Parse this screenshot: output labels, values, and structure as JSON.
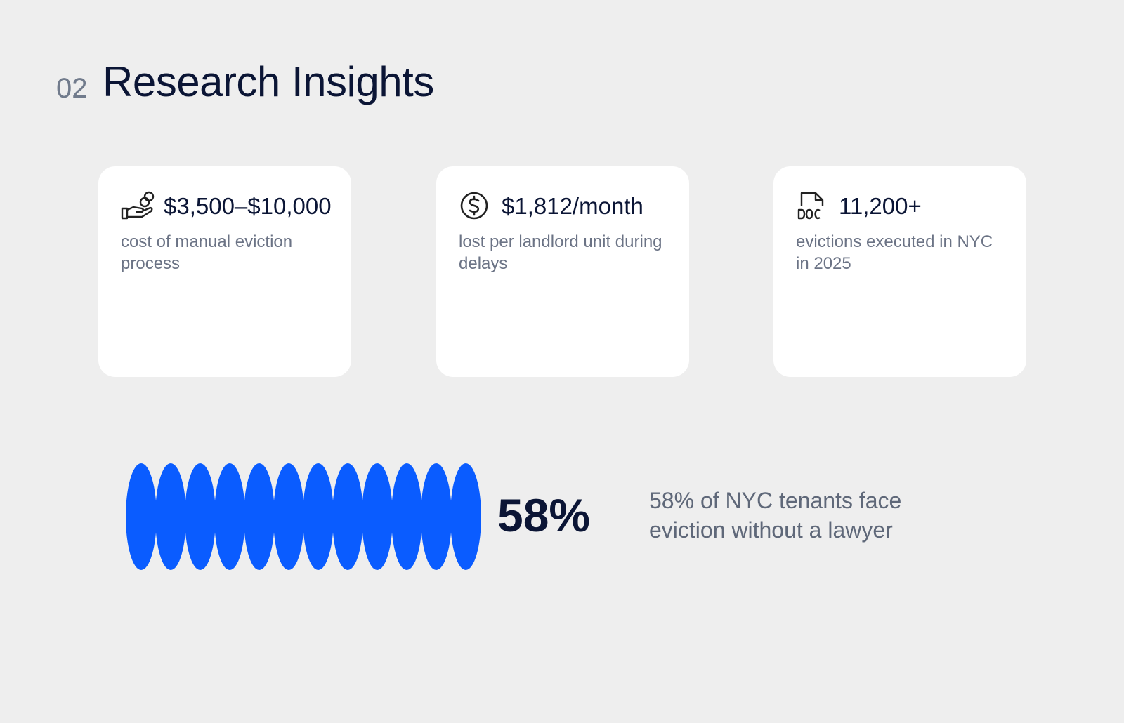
{
  "section_number": "02",
  "title": "Research Insights",
  "cards": [
    {
      "value": "$3,500–$10,000",
      "description": "cost of manual eviction process"
    },
    {
      "value": "$1,812/month",
      "description": "lost per landlord unit during delays"
    },
    {
      "value": "11,200+",
      "description": "evictions executed in NYC in 2025"
    }
  ],
  "highlight": {
    "stat": "58%",
    "description": "58% of NYC tenants face eviction without a lawyer"
  }
}
